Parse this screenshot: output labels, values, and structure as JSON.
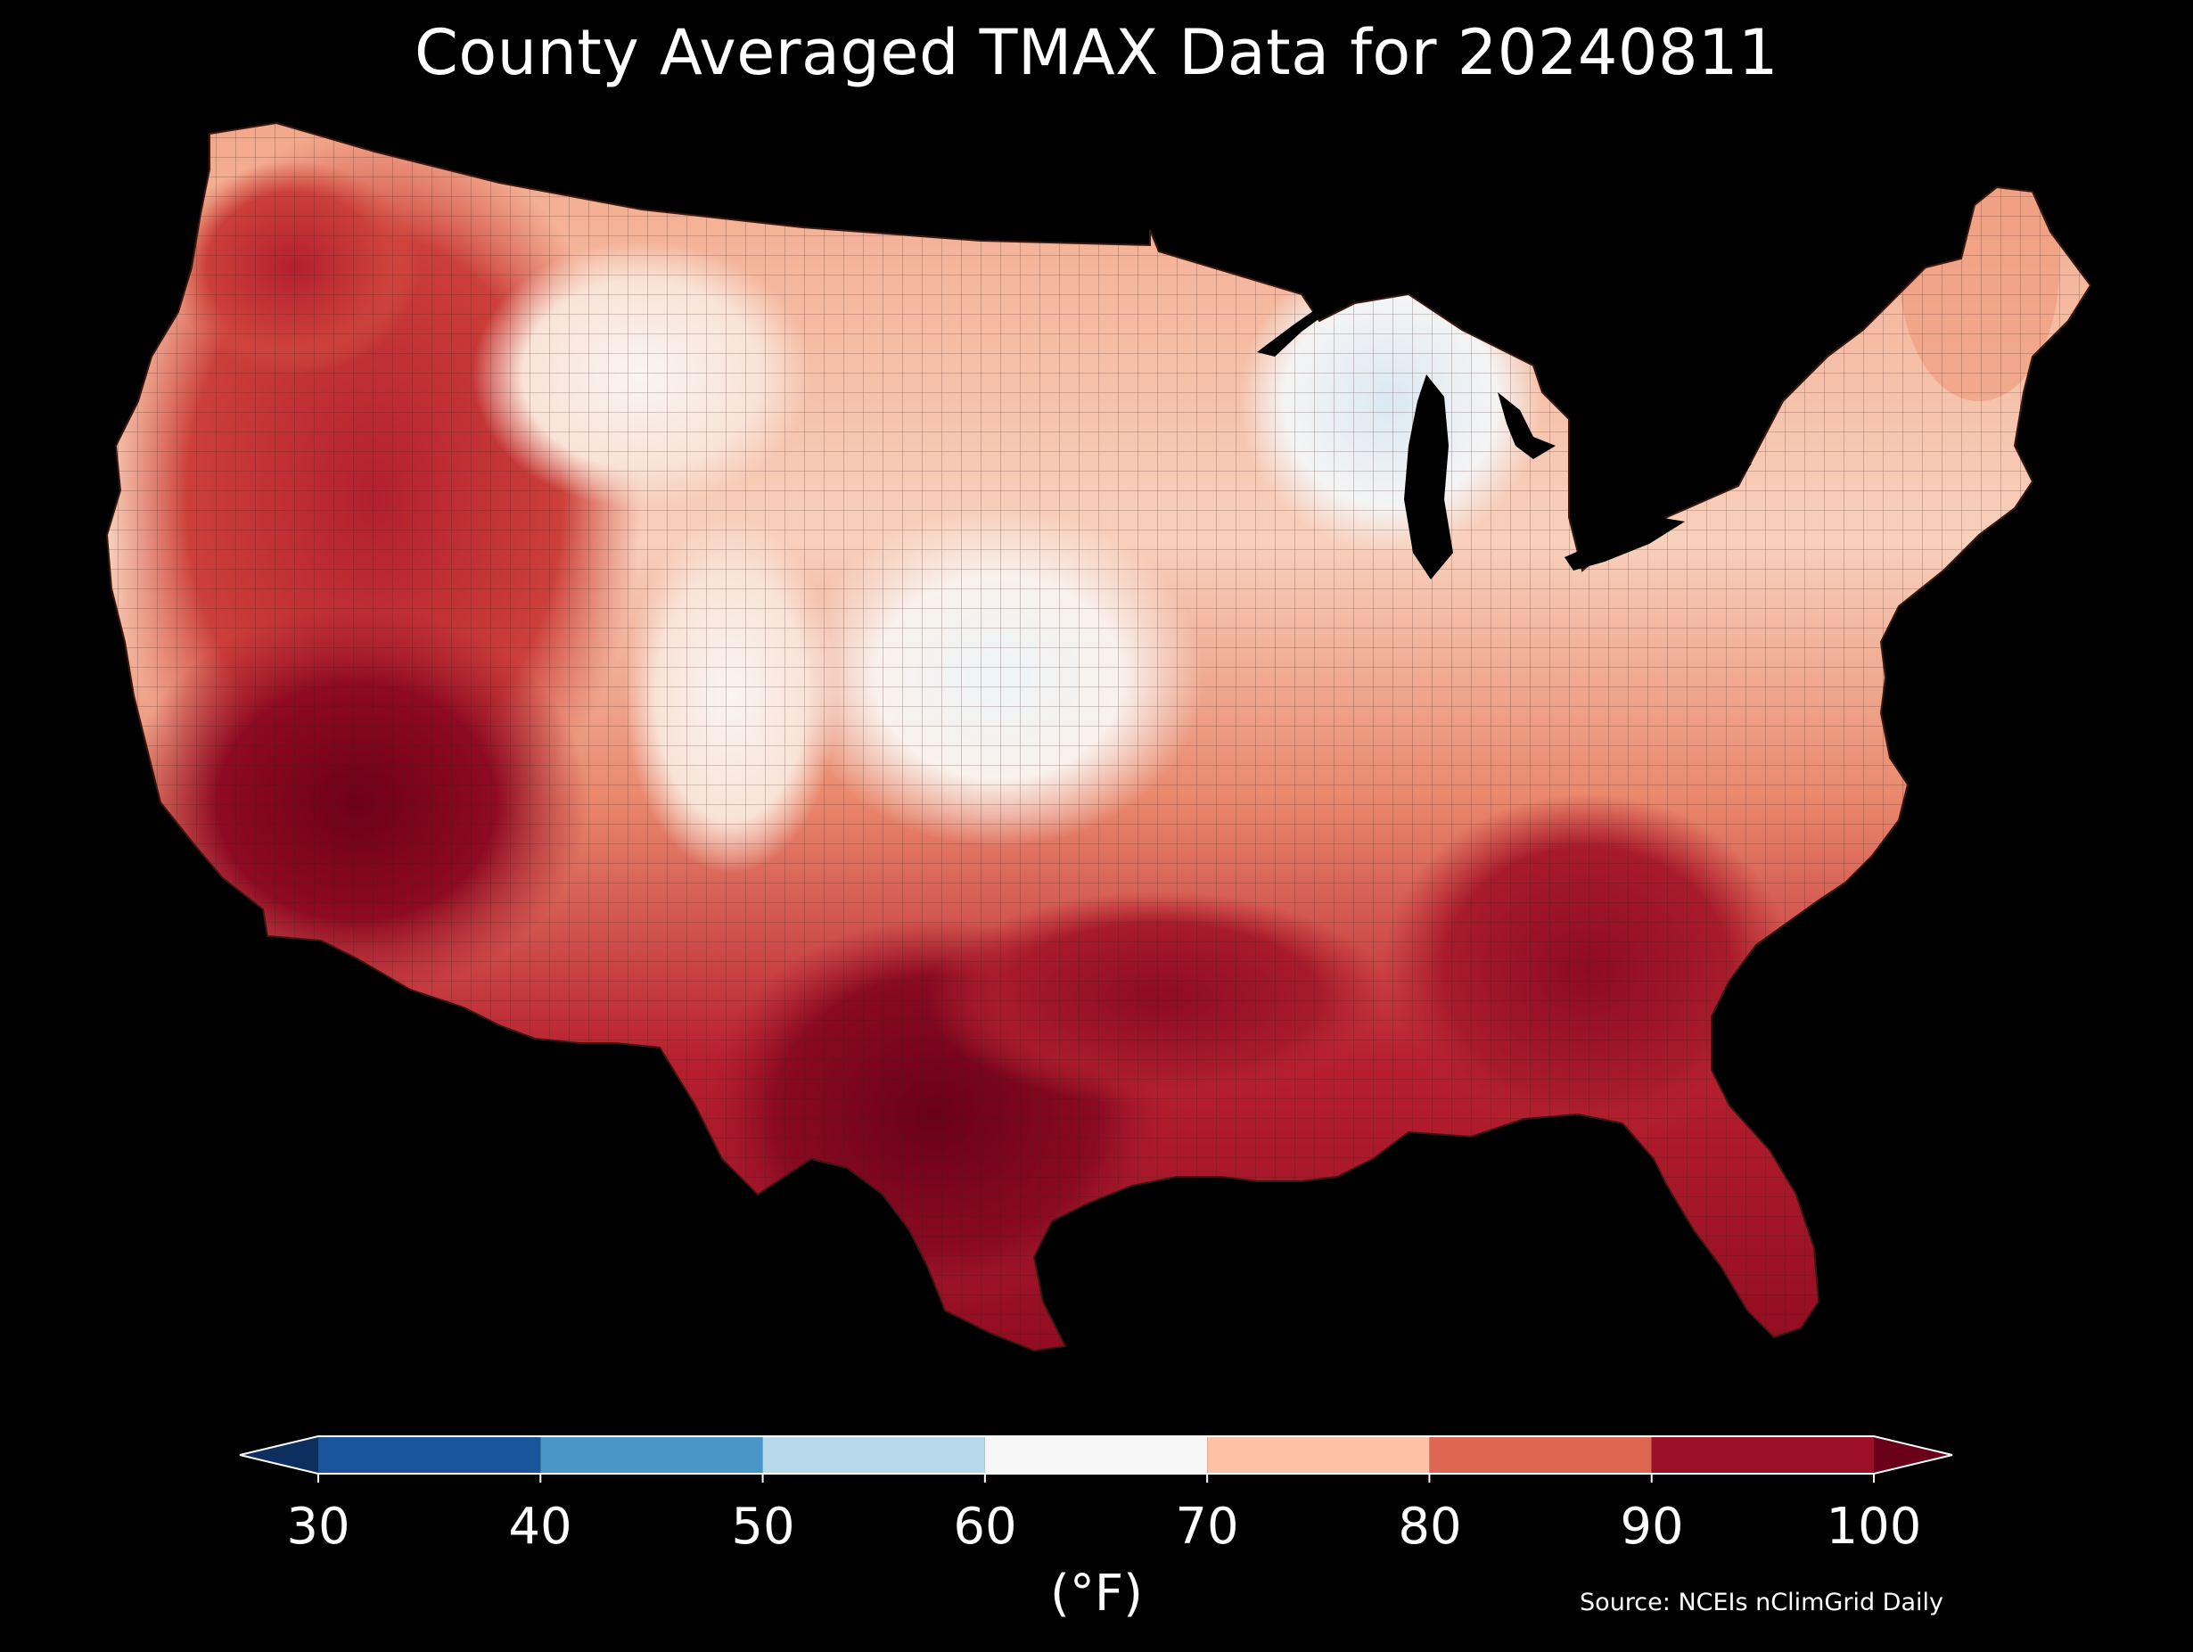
{
  "title": "County Averaged TMAX Data for 20240811",
  "source": "Source: NCEIs nClimGrid Daily",
  "colorbar": {
    "unit": "(°F)",
    "ticks": [
      "30",
      "40",
      "50",
      "60",
      "70",
      "80",
      "90",
      "100"
    ],
    "bins": [
      {
        "range": [
          30,
          40
        ],
        "color": "#1a559c"
      },
      {
        "range": [
          40,
          50
        ],
        "color": "#4796c6"
      },
      {
        "range": [
          50,
          60
        ],
        "color": "#b8d8eb"
      },
      {
        "range": [
          60,
          70
        ],
        "color": "#f7f7f7"
      },
      {
        "range": [
          70,
          80
        ],
        "color": "#fbc2a6"
      },
      {
        "range": [
          80,
          90
        ],
        "color": "#de6651"
      },
      {
        "range": [
          90,
          100
        ],
        "color": "#9e1027"
      }
    ],
    "under_color": "#0d2f5f",
    "over_color": "#6b0019"
  }
}
